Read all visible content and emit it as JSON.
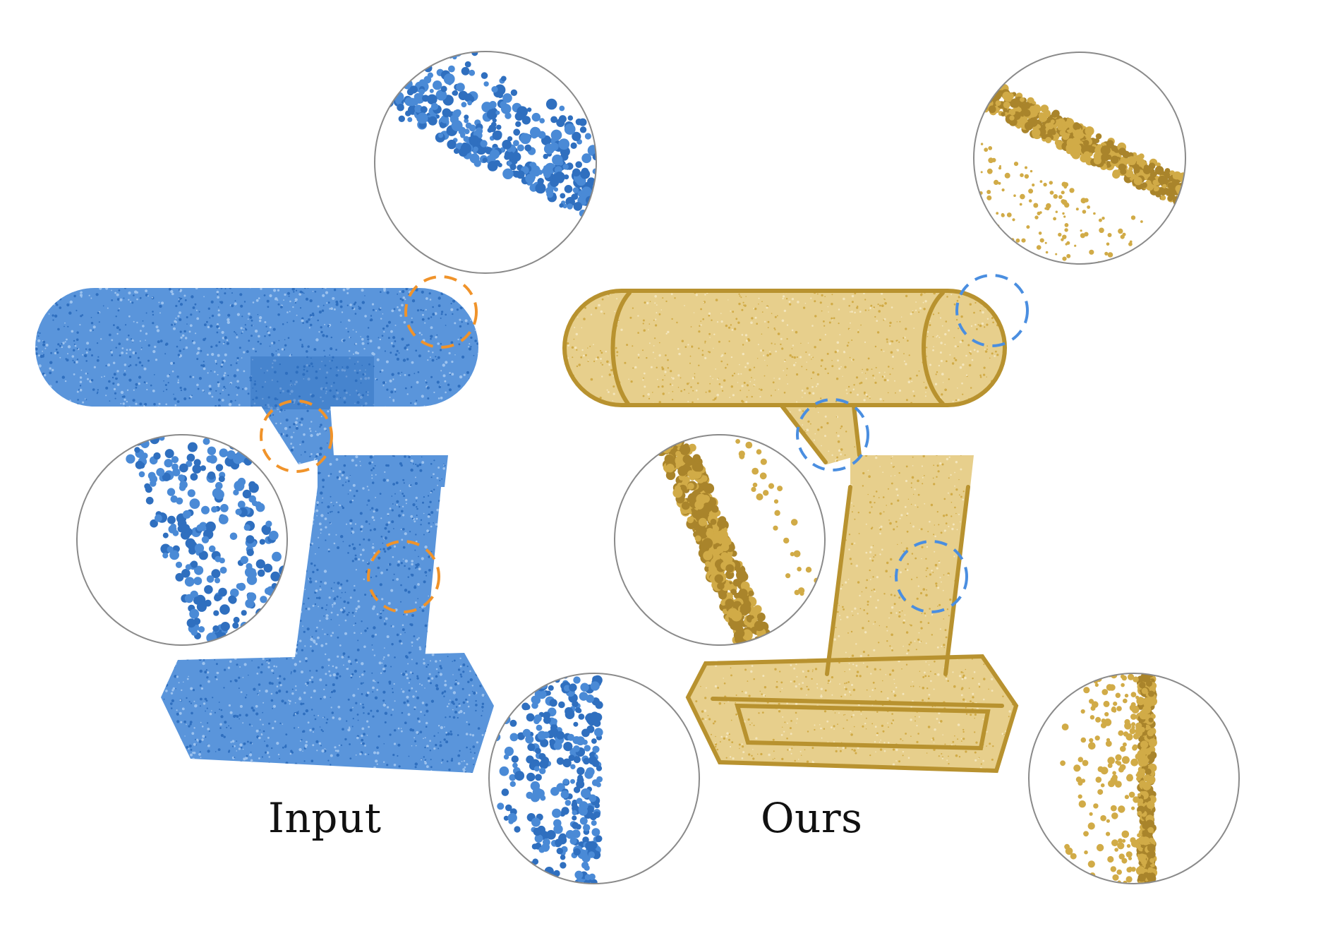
{
  "labels": {
    "input": "Input",
    "ours": "Ours"
  },
  "colors": {
    "input_points": "#4a8ad6",
    "input_points_dark": "#2f6fbf",
    "ours_points": "#d1ab47",
    "ours_points_dark": "#a9842b",
    "input_marker_ring": "#f0932a",
    "ours_marker_ring": "#4a8ee0",
    "zoom_border": "#8a8a8a",
    "background": "#ffffff"
  },
  "panels": [
    {
      "name": "input",
      "style": "noisy",
      "zoom_insets": 3,
      "marker_style": "dashed-circle"
    },
    {
      "name": "ours",
      "style": "clean",
      "zoom_insets": 3,
      "marker_style": "dashed-circle"
    }
  ]
}
